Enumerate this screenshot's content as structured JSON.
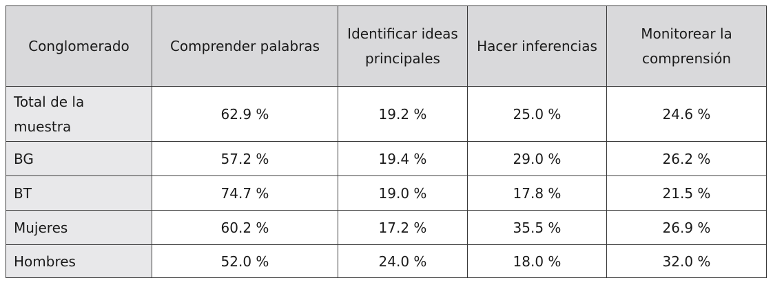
{
  "table": {
    "headers": [
      "Conglomerado",
      "Comprender palabras",
      "Identificar ideas principales",
      "Hacer inferencias",
      "Monitorear la comprensión"
    ],
    "rows": [
      {
        "label": "Total de la muestra",
        "values": [
          "62.9 %",
          "19.2 %",
          "25.0 %",
          "24.6 %"
        ]
      },
      {
        "label": "BG",
        "values": [
          "57.2 %",
          "19.4 %",
          "29.0 %",
          "26.2 %"
        ]
      },
      {
        "label": "BT",
        "values": [
          "74.7 %",
          "19.0 %",
          "17.8 %",
          "21.5 %"
        ]
      },
      {
        "label": "Mujeres",
        "values": [
          "60.2 %",
          "17.2 %",
          "35.5 %",
          "26.9 %"
        ]
      },
      {
        "label": "Hombres",
        "values": [
          "52.0 %",
          "24.0 %",
          "18.0 %",
          "32.0 %"
        ]
      }
    ]
  }
}
